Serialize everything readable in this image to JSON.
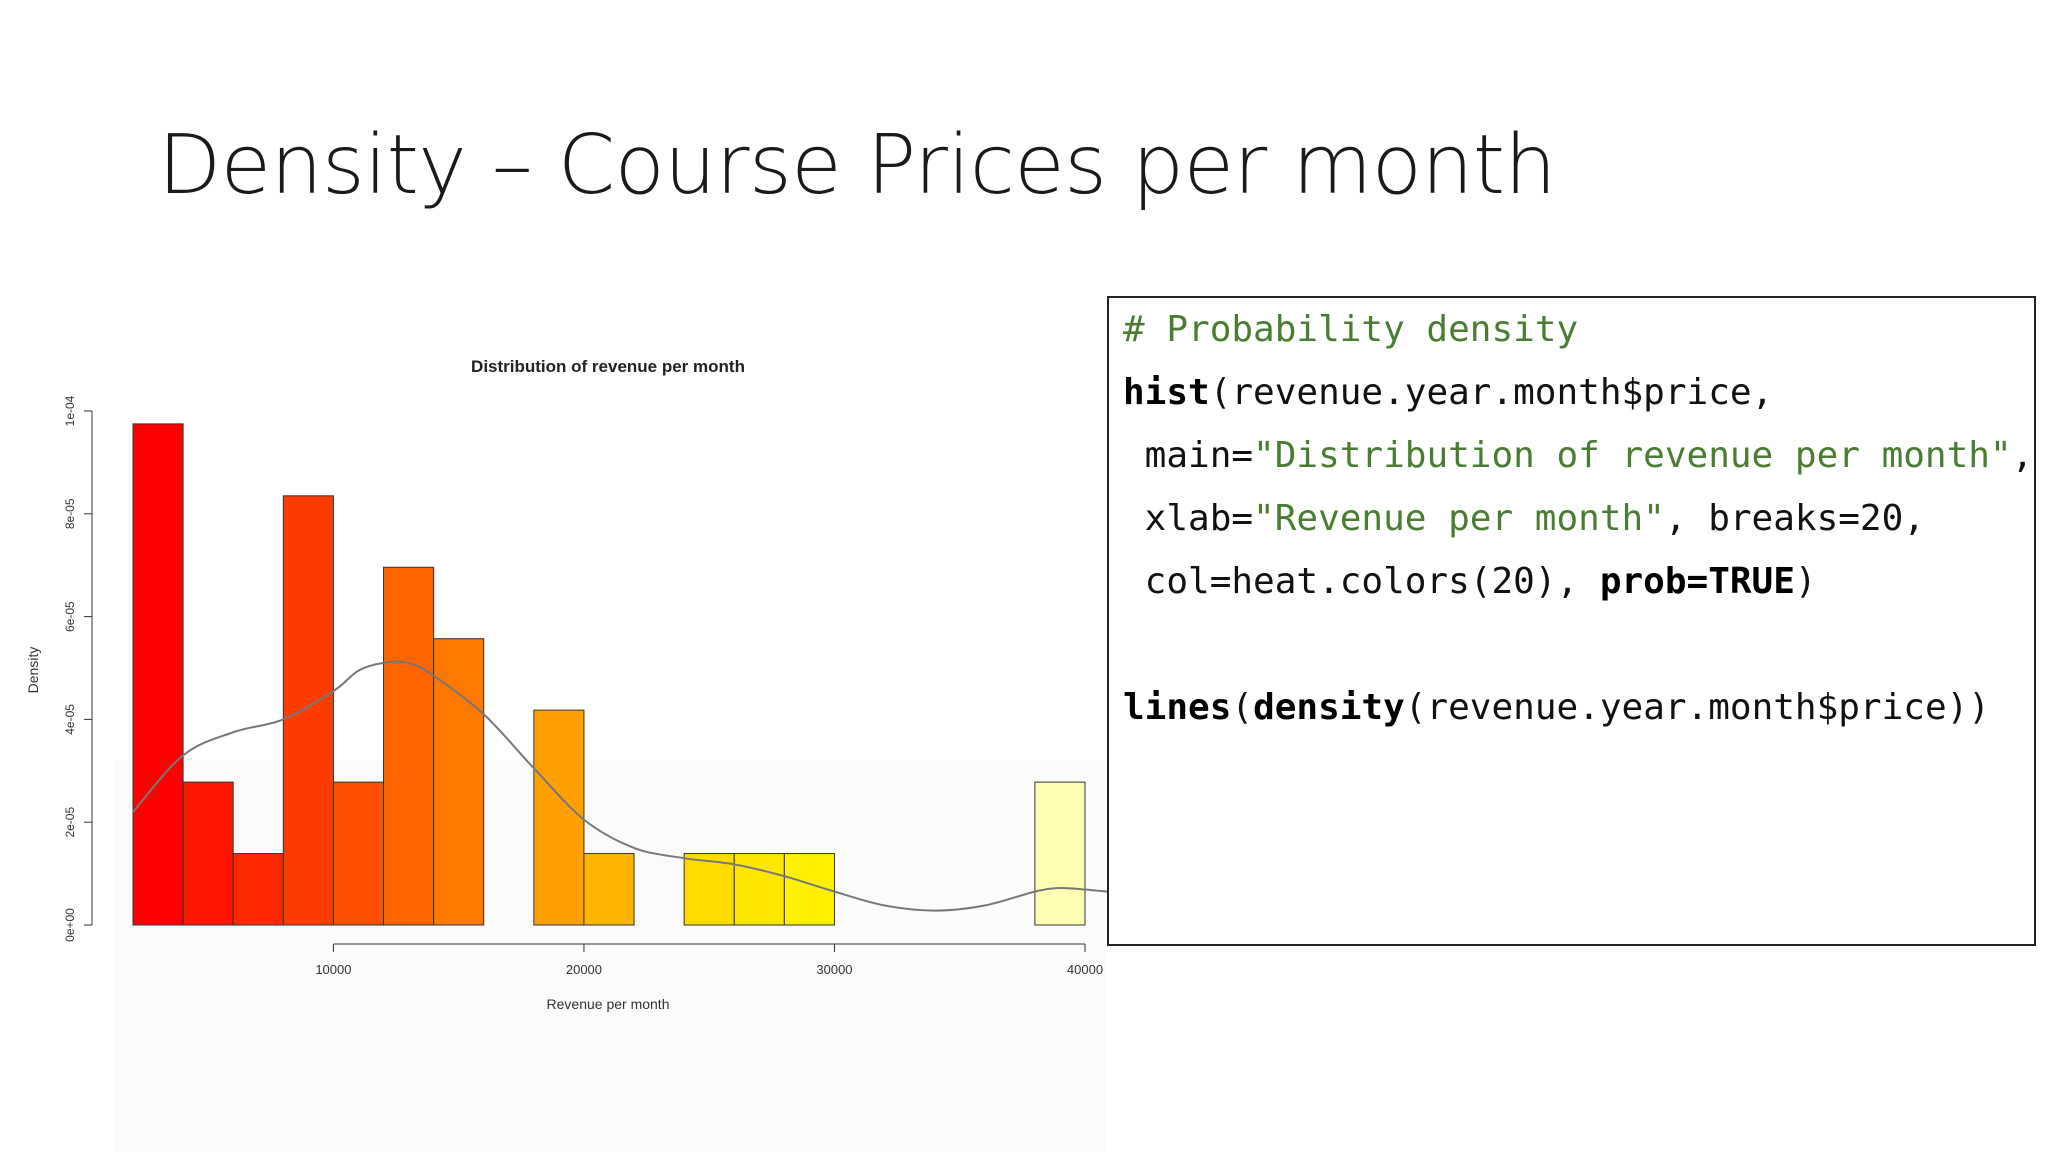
{
  "slide": {
    "title": "Density – Course Prices per month"
  },
  "chart_data": {
    "type": "bar",
    "title": "Distribution of revenue per month",
    "xlabel": "Revenue per month",
    "ylabel": "Density",
    "xlim": [
      2000,
      40000
    ],
    "ylim": [
      0,
      0.0001
    ],
    "x_ticks": [
      10000,
      20000,
      30000,
      40000
    ],
    "x_tick_labels": [
      "10000",
      "20000",
      "30000",
      "40000"
    ],
    "y_ticks": [
      0,
      2e-05,
      4e-05,
      6e-05,
      8e-05,
      0.0001
    ],
    "y_tick_labels": [
      "0e+00",
      "2e-05",
      "4e-05",
      "6e-05",
      "8e-05",
      "1e-04"
    ],
    "bins": [
      {
        "x0": 2000,
        "x1": 4000,
        "density": 9.75e-05,
        "color": "#ff0000"
      },
      {
        "x0": 4000,
        "x1": 6000,
        "density": 2.78e-05,
        "color": "#ff1400"
      },
      {
        "x0": 6000,
        "x1": 8000,
        "density": 1.39e-05,
        "color": "#ff2800"
      },
      {
        "x0": 8000,
        "x1": 10000,
        "density": 8.35e-05,
        "color": "#ff3c00"
      },
      {
        "x0": 10000,
        "x1": 12000,
        "density": 2.78e-05,
        "color": "#ff5000"
      },
      {
        "x0": 12000,
        "x1": 14000,
        "density": 6.96e-05,
        "color": "#ff6400"
      },
      {
        "x0": 14000,
        "x1": 16000,
        "density": 5.57e-05,
        "color": "#ff7800"
      },
      {
        "x0": 16000,
        "x1": 18000,
        "density": 0,
        "color": "#ff8c00"
      },
      {
        "x0": 18000,
        "x1": 20000,
        "density": 4.18e-05,
        "color": "#ffa000"
      },
      {
        "x0": 20000,
        "x1": 22000,
        "density": 1.39e-05,
        "color": "#ffb400"
      },
      {
        "x0": 22000,
        "x1": 24000,
        "density": 0,
        "color": "#ffc800"
      },
      {
        "x0": 24000,
        "x1": 26000,
        "density": 1.39e-05,
        "color": "#ffdb00"
      },
      {
        "x0": 26000,
        "x1": 28000,
        "density": 1.39e-05,
        "color": "#ffe600"
      },
      {
        "x0": 28000,
        "x1": 30000,
        "density": 1.39e-05,
        "color": "#fff000"
      },
      {
        "x0": 30000,
        "x1": 32000,
        "density": 0,
        "color": "#fff510"
      },
      {
        "x0": 32000,
        "x1": 34000,
        "density": 0,
        "color": "#fff840"
      },
      {
        "x0": 34000,
        "x1": 36000,
        "density": 0,
        "color": "#fffa70"
      },
      {
        "x0": 36000,
        "x1": 38000,
        "density": 0,
        "color": "#fffc90"
      },
      {
        "x0": 38000,
        "x1": 40000,
        "density": 2.78e-05,
        "color": "#ffffb3"
      }
    ],
    "density_curve": {
      "x": [
        2000,
        4000,
        6000,
        8000,
        10000,
        11000,
        12000,
        13000,
        14000,
        16000,
        18000,
        20000,
        22000,
        24000,
        26000,
        28000,
        30000,
        32000,
        34000,
        36000,
        38000,
        39000,
        40000,
        41500
      ],
      "y": [
        2.2e-05,
        3.3e-05,
        3.75e-05,
        4e-05,
        4.55e-05,
        4.95e-05,
        5.1e-05,
        5.1e-05,
        4.85e-05,
        4.1e-05,
        3.05e-05,
        2.05e-05,
        1.5e-05,
        1.3e-05,
        1.18e-05,
        9.5e-06,
        6.5e-06,
        3.8e-06,
        2.8e-06,
        3.8e-06,
        6.5e-06,
        7.2e-06,
        6.9e-06,
        6.2e-06
      ]
    }
  },
  "code": [
    [
      {
        "t": "# Probability density",
        "k": "comment"
      }
    ],
    [
      {
        "t": "hist",
        "k": "kw"
      },
      {
        "t": "(revenue.year.month$price,",
        "k": "plain"
      }
    ],
    [
      {
        "t": " main=",
        "k": "plain"
      },
      {
        "t": "\"Distribution of revenue per month\"",
        "k": "str"
      },
      {
        "t": ",",
        "k": "plain"
      }
    ],
    [
      {
        "t": " xlab=",
        "k": "plain"
      },
      {
        "t": "\"Revenue per month\"",
        "k": "str"
      },
      {
        "t": ", breaks=20,",
        "k": "plain"
      }
    ],
    [
      {
        "t": " col=heat.colors(20), ",
        "k": "plain"
      },
      {
        "t": "prob=TRUE",
        "k": "kw"
      },
      {
        "t": ")",
        "k": "plain"
      }
    ],
    [
      {
        "t": "",
        "k": "plain"
      }
    ],
    [
      {
        "t": "lines",
        "k": "kw"
      },
      {
        "t": "(",
        "k": "plain"
      },
      {
        "t": "density",
        "k": "kw"
      },
      {
        "t": "(revenue.year.month$price))",
        "k": "plain"
      }
    ]
  ]
}
